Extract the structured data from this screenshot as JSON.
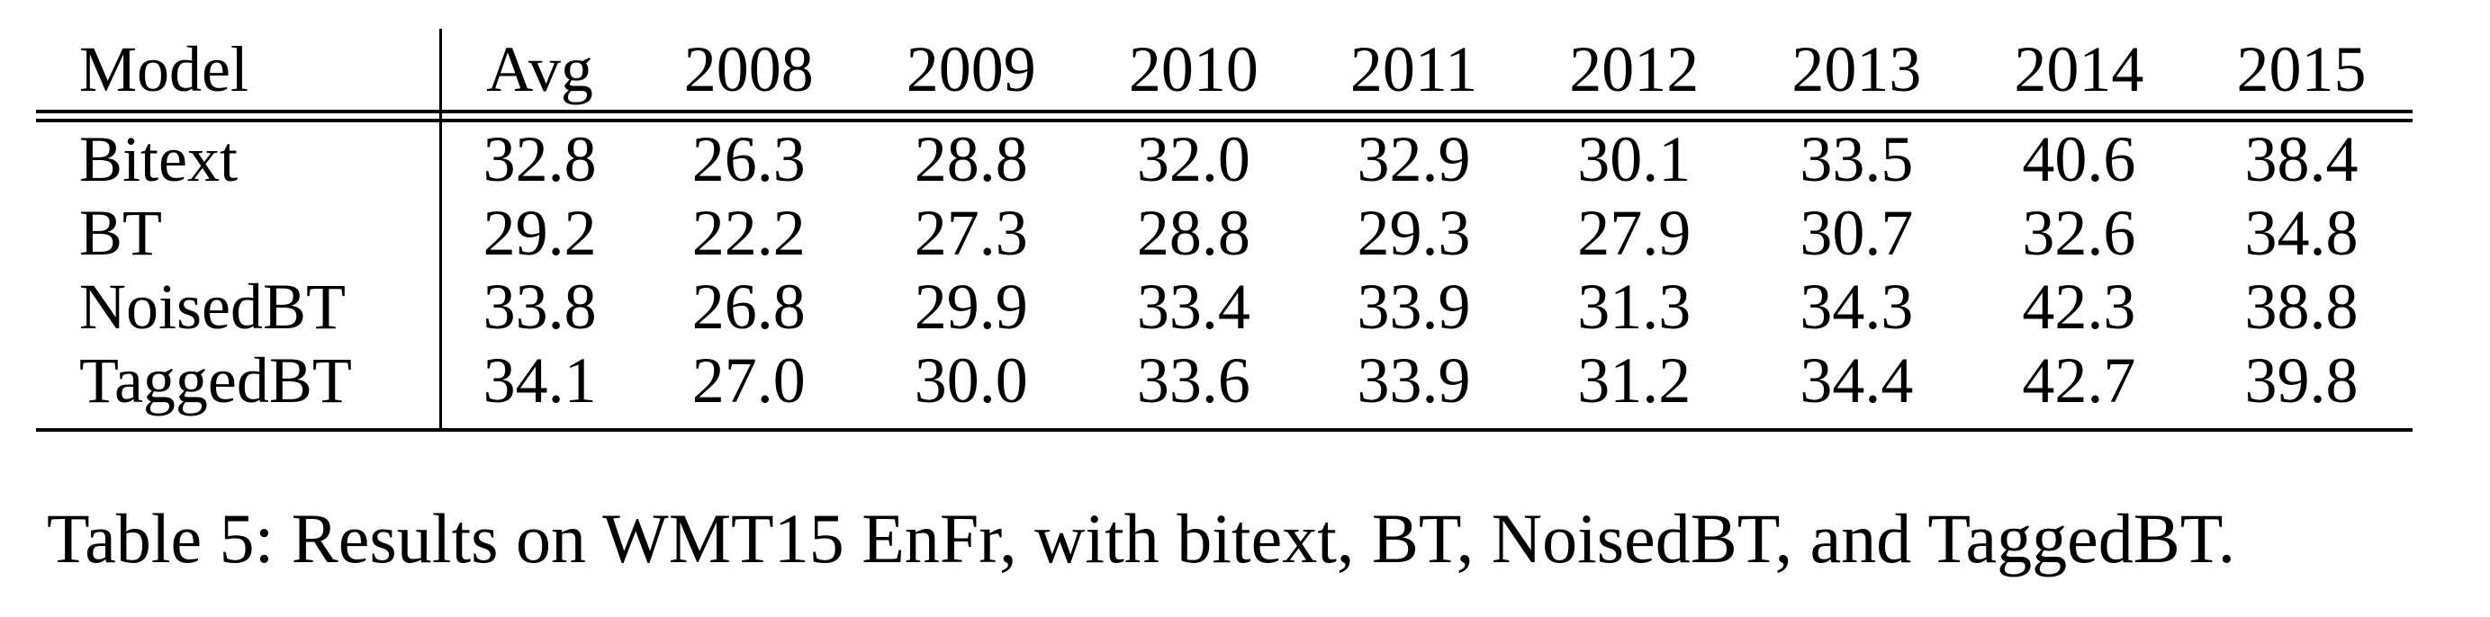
{
  "table": {
    "headers": [
      "Model",
      "Avg",
      "2008",
      "2009",
      "2010",
      "2011",
      "2012",
      "2013",
      "2014",
      "2015"
    ],
    "rows": [
      {
        "model": "Bitext",
        "cells": [
          {
            "value": "32.8",
            "bold": false
          },
          {
            "value": "26.3",
            "bold": false
          },
          {
            "value": "28.8",
            "bold": false
          },
          {
            "value": "32.0",
            "bold": false
          },
          {
            "value": "32.9",
            "bold": false
          },
          {
            "value": "30.1",
            "bold": false
          },
          {
            "value": "33.5",
            "bold": false
          },
          {
            "value": "40.6",
            "bold": false
          },
          {
            "value": "38.4",
            "bold": false
          }
        ]
      },
      {
        "model": "BT",
        "cells": [
          {
            "value": "29.2",
            "bold": false
          },
          {
            "value": "22.2",
            "bold": false
          },
          {
            "value": "27.3",
            "bold": false
          },
          {
            "value": "28.8",
            "bold": false
          },
          {
            "value": "29.3",
            "bold": false
          },
          {
            "value": "27.9",
            "bold": false
          },
          {
            "value": "30.7",
            "bold": false
          },
          {
            "value": "32.6",
            "bold": false
          },
          {
            "value": "34.8",
            "bold": false
          }
        ]
      },
      {
        "model": "NoisedBT",
        "cells": [
          {
            "value": "33.8",
            "bold": false
          },
          {
            "value": "26.8",
            "bold": false
          },
          {
            "value": "29.9",
            "bold": false
          },
          {
            "value": "33.4",
            "bold": false
          },
          {
            "value": "33.9",
            "bold": true
          },
          {
            "value": "31.3",
            "bold": true
          },
          {
            "value": "34.3",
            "bold": false
          },
          {
            "value": "42.3",
            "bold": false
          },
          {
            "value": "38.8",
            "bold": false
          }
        ]
      },
      {
        "model": "TaggedBT",
        "cells": [
          {
            "value": "34.1",
            "bold": true
          },
          {
            "value": "27.0",
            "bold": true
          },
          {
            "value": "30.0",
            "bold": true
          },
          {
            "value": "33.6",
            "bold": true
          },
          {
            "value": "33.9",
            "bold": true
          },
          {
            "value": "31.2",
            "bold": false
          },
          {
            "value": "34.4",
            "bold": true
          },
          {
            "value": "42.7",
            "bold": true
          },
          {
            "value": "39.8",
            "bold": true
          }
        ]
      }
    ]
  },
  "caption": "Table 5: Results on WMT15 EnFr, with bitext, BT, NoisedBT, and TaggedBT."
}
